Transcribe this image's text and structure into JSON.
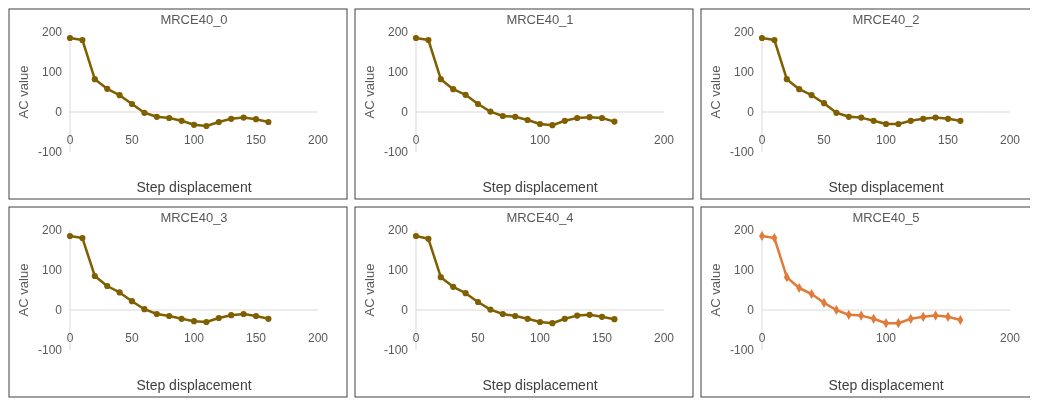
{
  "chart_data": [
    {
      "type": "line",
      "title": "MRCE40_0",
      "xlabel": "Step displacement",
      "ylabel": "AC value",
      "x": [
        0,
        10,
        20,
        30,
        40,
        50,
        60,
        70,
        80,
        90,
        100,
        110,
        120,
        130,
        140,
        150,
        160
      ],
      "series": [
        {
          "color": "#7f5f00",
          "values": [
            185,
            180,
            82,
            58,
            42,
            20,
            -2,
            -12,
            -15,
            -22,
            -32,
            -35,
            -25,
            -17,
            -14,
            -18,
            -25
          ]
        }
      ],
      "xlim": [
        0,
        200
      ],
      "xticks": [
        0,
        50,
        100,
        150,
        200
      ],
      "ylim": [
        -100,
        200
      ],
      "yticks": [
        -100,
        0,
        100,
        200
      ],
      "marker": "circle",
      "grid": false
    },
    {
      "type": "line",
      "title": "MRCE40_1",
      "xlabel": "Step displacement",
      "ylabel": "AC value",
      "x": [
        0,
        10,
        20,
        30,
        40,
        50,
        60,
        70,
        80,
        90,
        100,
        110,
        120,
        130,
        140,
        150,
        160
      ],
      "series": [
        {
          "color": "#7f5f00",
          "values": [
            185,
            180,
            82,
            57,
            43,
            20,
            1,
            -10,
            -12,
            -20,
            -30,
            -33,
            -22,
            -15,
            -13,
            -15,
            -24
          ]
        }
      ],
      "xlim": [
        0,
        200
      ],
      "xticks": [
        0,
        100,
        200
      ],
      "ylim": [
        -100,
        200
      ],
      "yticks": [
        -100,
        0,
        100,
        200
      ],
      "marker": "circle",
      "grid": false
    },
    {
      "type": "line",
      "title": "MRCE40_2",
      "xlabel": "Step displacement",
      "ylabel": "AC value",
      "x": [
        0,
        10,
        20,
        30,
        40,
        50,
        60,
        70,
        80,
        90,
        100,
        110,
        120,
        130,
        140,
        150,
        160
      ],
      "series": [
        {
          "color": "#7f5f00",
          "values": [
            185,
            180,
            82,
            57,
            42,
            22,
            -2,
            -12,
            -14,
            -22,
            -30,
            -30,
            -22,
            -17,
            -14,
            -17,
            -22
          ]
        }
      ],
      "xlim": [
        0,
        200
      ],
      "xticks": [
        0,
        50,
        100,
        150,
        200
      ],
      "ylim": [
        -100,
        200
      ],
      "yticks": [
        -100,
        0,
        100,
        200
      ],
      "marker": "circle",
      "grid": false
    },
    {
      "type": "line",
      "title": "MRCE40_3",
      "xlabel": "Step displacement",
      "ylabel": "AC value",
      "x": [
        0,
        10,
        20,
        30,
        40,
        50,
        60,
        70,
        80,
        90,
        100,
        110,
        120,
        130,
        140,
        150,
        160
      ],
      "series": [
        {
          "color": "#7f5f00",
          "values": [
            185,
            180,
            85,
            60,
            44,
            22,
            2,
            -10,
            -15,
            -22,
            -28,
            -30,
            -20,
            -13,
            -10,
            -15,
            -22
          ]
        }
      ],
      "xlim": [
        0,
        200
      ],
      "xticks": [
        0,
        50,
        100,
        150,
        200
      ],
      "ylim": [
        -100,
        200
      ],
      "yticks": [
        -100,
        0,
        100,
        200
      ],
      "marker": "circle",
      "grid": false
    },
    {
      "type": "line",
      "title": "MRCE40_4",
      "xlabel": "Step displacement",
      "ylabel": "AC value",
      "x": [
        0,
        10,
        20,
        30,
        40,
        50,
        60,
        70,
        80,
        90,
        100,
        110,
        120,
        130,
        140,
        150,
        160
      ],
      "series": [
        {
          "color": "#7f5f00",
          "values": [
            185,
            178,
            82,
            58,
            42,
            20,
            1,
            -10,
            -15,
            -22,
            -30,
            -33,
            -22,
            -14,
            -12,
            -17,
            -23
          ]
        }
      ],
      "xlim": [
        0,
        200
      ],
      "xticks": [
        0,
        50,
        100,
        150,
        200
      ],
      "ylim": [
        -100,
        200
      ],
      "yticks": [
        -100,
        0,
        100,
        200
      ],
      "marker": "circle",
      "grid": false
    },
    {
      "type": "line",
      "title": "MRCE40_5",
      "xlabel": "Step displacement",
      "ylabel": "AC value",
      "x": [
        0,
        10,
        20,
        30,
        40,
        50,
        60,
        70,
        80,
        90,
        100,
        110,
        120,
        130,
        140,
        150,
        160
      ],
      "series": [
        {
          "color": "#e07b39",
          "values": [
            185,
            180,
            82,
            55,
            40,
            18,
            0,
            -12,
            -14,
            -22,
            -33,
            -33,
            -22,
            -17,
            -14,
            -17,
            -25
          ]
        }
      ],
      "xlim": [
        0,
        200
      ],
      "xticks": [
        0,
        100,
        200
      ],
      "ylim": [
        -100,
        200
      ],
      "yticks": [
        -100,
        0,
        100,
        200
      ],
      "marker": "diamond",
      "grid": false
    }
  ]
}
